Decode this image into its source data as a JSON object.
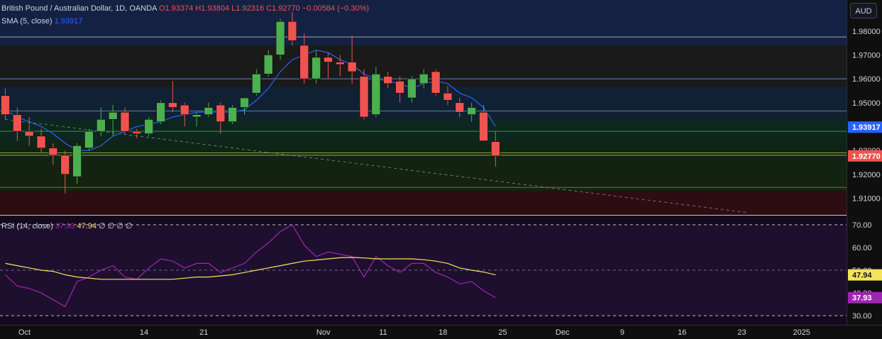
{
  "legend": {
    "symbol": "British Pound / Australian Dollar, 1D, OANDA",
    "open": "O1.93374",
    "high": "H1.93804",
    "low": "L1.92316",
    "close": "C1.92770",
    "change": "−0.00584 (−0.30%)",
    "sma_label": "SMA (5, close)",
    "sma_value": "1.93917",
    "rsi_label": "RSI (14, close)",
    "rsi_value": "37.93",
    "rsi_ma_value": "47.94",
    "rsi_extra": "∅ ∅ ∅ ∅"
  },
  "currency_button": "AUD",
  "colors": {
    "up": "#4caf50",
    "down": "#ef5350",
    "sma": "#2962ff",
    "rsi": "#9c27b0",
    "rsi_ma": "#f5e35b"
  },
  "chart_data": [
    {
      "type": "candlestick",
      "name": "price",
      "ylim": [
        1.903,
        1.993
      ],
      "y_ticks": [
        "1.98000",
        "1.97000",
        "1.96000",
        "1.95000",
        "1.92000",
        "1.91000"
      ],
      "x_ticks": [
        "Oct",
        "14",
        "21",
        "Nov",
        "11",
        "18",
        "25",
        "Dec",
        "9",
        "16",
        "23",
        "2025"
      ],
      "x_tick_positions": [
        1.6,
        11.6,
        16.6,
        26.6,
        31.6,
        36.6,
        41.6,
        46.6,
        51.6,
        56.6,
        61.6,
        66.6
      ],
      "candles": [
        {
          "o": 1.953,
          "h": 1.956,
          "l": 1.943,
          "c": 1.945
        },
        {
          "o": 1.945,
          "h": 1.948,
          "l": 1.934,
          "c": 1.938
        },
        {
          "o": 1.938,
          "h": 1.944,
          "l": 1.932,
          "c": 1.936
        },
        {
          "o": 1.936,
          "h": 1.939,
          "l": 1.929,
          "c": 1.931
        },
        {
          "o": 1.931,
          "h": 1.933,
          "l": 1.924,
          "c": 1.928
        },
        {
          "o": 1.928,
          "h": 1.93,
          "l": 1.912,
          "c": 1.92
        },
        {
          "o": 1.919,
          "h": 1.933,
          "l": 1.916,
          "c": 1.932
        },
        {
          "o": 1.931,
          "h": 1.939,
          "l": 1.93,
          "c": 1.938
        },
        {
          "o": 1.938,
          "h": 1.948,
          "l": 1.936,
          "c": 1.943
        },
        {
          "o": 1.943,
          "h": 1.949,
          "l": 1.936,
          "c": 1.946
        },
        {
          "o": 1.946,
          "h": 1.948,
          "l": 1.937,
          "c": 1.938
        },
        {
          "o": 1.938,
          "h": 1.939,
          "l": 1.935,
          "c": 1.937
        },
        {
          "o": 1.937,
          "h": 1.944,
          "l": 1.936,
          "c": 1.943
        },
        {
          "o": 1.942,
          "h": 1.951,
          "l": 1.941,
          "c": 1.95
        },
        {
          "o": 1.95,
          "h": 1.959,
          "l": 1.946,
          "c": 1.948
        },
        {
          "o": 1.949,
          "h": 1.95,
          "l": 1.94,
          "c": 1.945
        },
        {
          "o": 1.944,
          "h": 1.946,
          "l": 1.94,
          "c": 1.945
        },
        {
          "o": 1.945,
          "h": 1.95,
          "l": 1.944,
          "c": 1.948
        },
        {
          "o": 1.949,
          "h": 1.95,
          "l": 1.937,
          "c": 1.942
        },
        {
          "o": 1.942,
          "h": 1.949,
          "l": 1.941,
          "c": 1.948
        },
        {
          "o": 1.948,
          "h": 1.952,
          "l": 1.945,
          "c": 1.952
        },
        {
          "o": 1.954,
          "h": 1.964,
          "l": 1.953,
          "c": 1.962
        },
        {
          "o": 1.962,
          "h": 1.972,
          "l": 1.961,
          "c": 1.97
        },
        {
          "o": 1.97,
          "h": 1.985,
          "l": 1.968,
          "c": 1.984
        },
        {
          "o": 1.984,
          "h": 1.988,
          "l": 1.974,
          "c": 1.976
        },
        {
          "o": 1.974,
          "h": 1.979,
          "l": 1.958,
          "c": 1.96
        },
        {
          "o": 1.96,
          "h": 1.972,
          "l": 1.958,
          "c": 1.969
        },
        {
          "o": 1.969,
          "h": 1.971,
          "l": 1.96,
          "c": 1.967
        },
        {
          "o": 1.967,
          "h": 1.97,
          "l": 1.961,
          "c": 1.966
        },
        {
          "o": 1.967,
          "h": 1.978,
          "l": 1.958,
          "c": 1.963
        },
        {
          "o": 1.961,
          "h": 1.964,
          "l": 1.943,
          "c": 1.944
        },
        {
          "o": 1.945,
          "h": 1.965,
          "l": 1.944,
          "c": 1.962
        },
        {
          "o": 1.961,
          "h": 1.963,
          "l": 1.956,
          "c": 1.958
        },
        {
          "o": 1.959,
          "h": 1.961,
          "l": 1.95,
          "c": 1.954
        },
        {
          "o": 1.952,
          "h": 1.961,
          "l": 1.95,
          "c": 1.96
        },
        {
          "o": 1.958,
          "h": 1.964,
          "l": 1.956,
          "c": 1.962
        },
        {
          "o": 1.963,
          "h": 1.964,
          "l": 1.953,
          "c": 1.954
        },
        {
          "o": 1.954,
          "h": 1.957,
          "l": 1.949,
          "c": 1.951
        },
        {
          "o": 1.95,
          "h": 1.952,
          "l": 1.944,
          "c": 1.946
        },
        {
          "o": 1.945,
          "h": 1.95,
          "l": 1.942,
          "c": 1.948
        },
        {
          "o": 1.946,
          "h": 1.949,
          "l": 1.934,
          "c": 1.934
        },
        {
          "o": 1.9337,
          "h": 1.938,
          "l": 1.9232,
          "c": 1.9277
        }
      ],
      "sma_values": [
        1.947,
        1.944,
        1.942,
        1.94,
        1.937,
        1.933,
        1.93,
        1.93,
        1.932,
        1.936,
        1.938,
        1.94,
        1.941,
        1.942,
        1.944,
        1.945,
        1.946,
        1.946,
        1.946,
        1.946,
        1.947,
        1.951,
        1.956,
        1.963,
        1.968,
        1.97,
        1.972,
        1.971,
        1.968,
        1.966,
        1.962,
        1.96,
        1.959,
        1.958,
        1.956,
        1.958,
        1.959,
        1.958,
        1.954,
        1.952,
        1.948,
        1.94
      ],
      "sma_value_label": "1.93917",
      "close_value_label": "1.92770",
      "hidden_tick_label": "1.93000",
      "reference_lines": [
        1.9775,
        1.96,
        1.9465,
        1.938,
        1.929,
        1.928,
        1.9145
      ],
      "trendline": [
        [
          0,
          1.943
        ],
        [
          62,
          1.904
        ]
      ]
    },
    {
      "type": "line",
      "name": "rsi",
      "ylim": [
        26,
        74
      ],
      "y_ticks": [
        "70.00",
        "60.00",
        "30.00"
      ],
      "hidden_tick_labels": [
        "50.00",
        "40.00"
      ],
      "levels": [
        70,
        50,
        30
      ],
      "series": [
        {
          "values": [
            48,
            43,
            42,
            40,
            37,
            34,
            45,
            47,
            50,
            52,
            47,
            46,
            51,
            55,
            54,
            51,
            53,
            53,
            49,
            51,
            53,
            58,
            62,
            67,
            70,
            61,
            56,
            58,
            57,
            56,
            47,
            56,
            52,
            49,
            53,
            53,
            49,
            47,
            44,
            45,
            41,
            37.93
          ]
        },
        {
          "values": [
            53,
            52,
            51,
            50,
            49.5,
            48,
            47,
            46.5,
            46,
            46,
            46,
            46,
            46,
            46,
            46,
            46.5,
            47,
            47,
            47.5,
            48,
            49,
            50,
            51,
            52,
            53,
            54,
            54.5,
            55,
            55.5,
            55.6,
            55.4,
            55,
            55,
            55,
            55,
            54.6,
            54,
            53,
            51,
            50,
            49.2,
            47.94
          ]
        }
      ],
      "rsi_value_label": "37.93",
      "rsi_ma_value_label": "47.94"
    }
  ]
}
